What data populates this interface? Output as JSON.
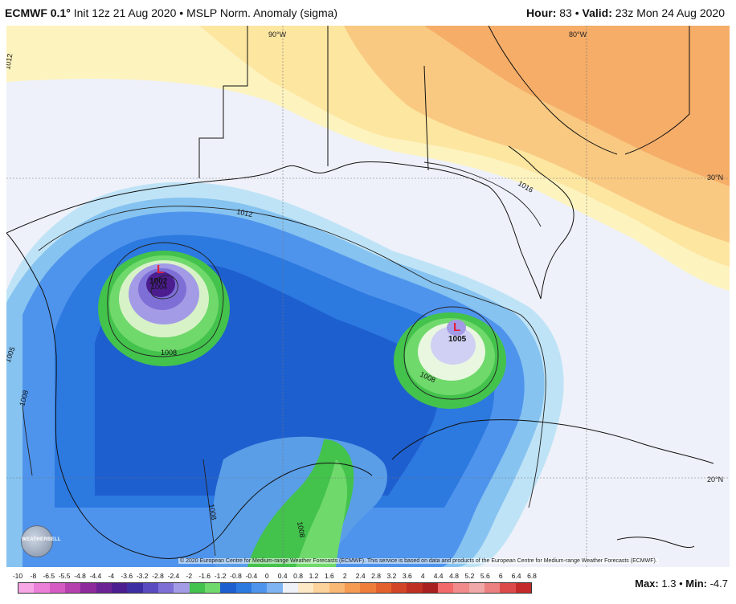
{
  "header": {
    "model": "ECMWF 0.1°",
    "init": "Init 12z 21 Aug 2020",
    "bullet": "•",
    "field": "MSLP Norm. Anomaly (sigma)",
    "hour_label": "Hour:",
    "hour_value": "83",
    "valid_label": "Valid:",
    "valid_value": "23z Mon 24 Aug 2020"
  },
  "map": {
    "grid_labels": {
      "lon_90": "90°W",
      "lon_80": "80°W",
      "lat_30": "30°N",
      "lat_20": "20°N"
    },
    "isobars": {
      "i1012_left": "1012",
      "i1012_gulf": "1012",
      "i1016": "1016",
      "i1008_a": "1008",
      "i1008_b": "1008",
      "i1008_c": "1008",
      "i1008_d": "1008",
      "i1008_e": "1008",
      "i1005_left": "1005",
      "i1004": "1004"
    },
    "lows": [
      {
        "symbol": "L",
        "pressure": "1002"
      },
      {
        "symbol": "L",
        "pressure": "1005"
      }
    ],
    "copyright": "© 2020 European Centre for Medium-range Weather Forecasts (ECMWF). This service is based on data and products of the European Centre for Medium-range Weather Forecasts (ECMWF).",
    "logo_text": "WEATHERBELL"
  },
  "colorbar": {
    "labels": [
      "-10",
      "-8",
      "-6.5",
      "-5.5",
      "-4.8",
      "-4.4",
      "-4",
      "-3.6",
      "-3.2",
      "-2.8",
      "-2.4",
      "-2",
      "-1.6",
      "-1.2",
      "-0.8",
      "-0.4",
      "0",
      "0.4",
      "0.8",
      "1.2",
      "1.6",
      "2",
      "2.4",
      "2.8",
      "3.2",
      "3.6",
      "4",
      "4.4",
      "4.8",
      "5.2",
      "5.6",
      "6",
      "6.4",
      "6.8"
    ],
    "colors": [
      "#f7a6e6",
      "#ec7fd8",
      "#d65cc4",
      "#b640ae",
      "#8e2a9c",
      "#6a2294",
      "#4b1d8f",
      "#3d2fa3",
      "#5a4cc0",
      "#7d6fd6",
      "#a39be6",
      "#43c24c",
      "#6fd96b",
      "#1e5fcf",
      "#2c79e0",
      "#4f94ec",
      "#7fb4f2",
      "#eef2f8",
      "#fde9c5",
      "#fcd39a",
      "#f9b873",
      "#f59b52",
      "#ef7e3a",
      "#e3612d",
      "#d24527",
      "#bf2f22",
      "#a8201f",
      "#f36a6a",
      "#f28b8b",
      "#f0a8a8",
      "#ec8080",
      "#dd4a4a",
      "#c42a2a"
    ],
    "max_label": "Max:",
    "max_value": "1.3",
    "min_label": "Min:",
    "min_value": "-4.7"
  }
}
